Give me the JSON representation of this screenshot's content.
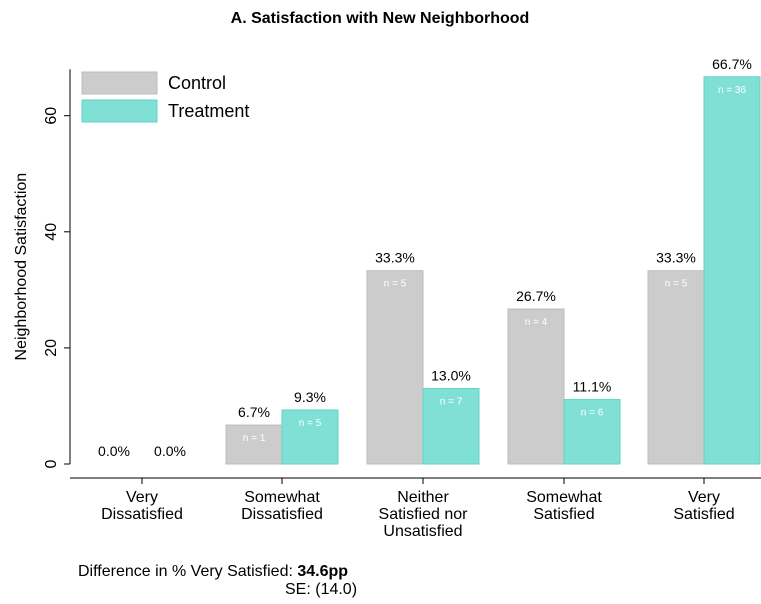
{
  "colors": {
    "control": "#cccccc",
    "treatment": "#80e0d6",
    "axis": "#000000"
  },
  "chart_data": {
    "type": "bar",
    "title": "A. Satisfaction with New Neighborhood",
    "ylabel": "Neighborhood Satisfaction",
    "xlabel": "",
    "ylim": [
      0,
      68
    ],
    "yticks": [
      0,
      20,
      40,
      60
    ],
    "grid": false,
    "legend_position": "top-left",
    "categories": [
      [
        "Very",
        "Dissatisfied"
      ],
      [
        "Somewhat",
        "Dissatisfied"
      ],
      [
        "Neither",
        "Satisfied nor",
        "Unsatisfied"
      ],
      [
        "Somewhat",
        "Satisfied"
      ],
      [
        "Very",
        "Satisfied"
      ]
    ],
    "series": [
      {
        "name": "Control",
        "color_key": "control",
        "values": [
          0.0,
          6.7,
          33.3,
          26.7,
          33.3
        ],
        "labels": [
          "0.0%",
          "6.7%",
          "33.3%",
          "26.7%",
          "33.3%"
        ],
        "n_labels": [
          "",
          "n = 1",
          "n = 5",
          "n = 4",
          "n = 5"
        ]
      },
      {
        "name": "Treatment",
        "color_key": "treatment",
        "values": [
          0.0,
          9.3,
          13.0,
          11.1,
          66.7
        ],
        "labels": [
          "0.0%",
          "9.3%",
          "13.0%",
          "11.1%",
          "66.7%"
        ],
        "n_labels": [
          "",
          "n = 5",
          "n = 7",
          "n = 6",
          "n = 36"
        ]
      }
    ]
  },
  "note": {
    "difference_prefix": "Difference in % Very Satisfied: ",
    "difference_value": "34.6pp",
    "se": "SE: (14.0)"
  }
}
